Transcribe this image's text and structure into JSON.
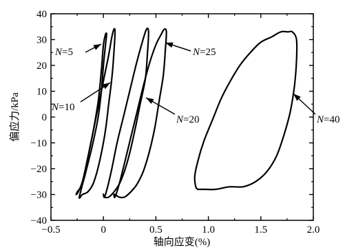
{
  "chart_data": {
    "type": "line",
    "xlabel": "轴向应变(%)",
    "ylabel": "偏应力/kPa",
    "xlim": [
      -0.5,
      2.0
    ],
    "ylim": [
      -40,
      40
    ],
    "x_ticks": [
      "−0.5",
      "0",
      "0.5",
      "1.0",
      "1.5",
      "2.0"
    ],
    "y_ticks": [
      "40",
      "30",
      "20",
      "10",
      "0",
      "−10",
      "−20",
      "−30",
      "−40"
    ],
    "grid": false,
    "series": [
      {
        "name": "N=5",
        "x": [
          -0.25,
          -0.26,
          -0.24,
          -0.2,
          -0.15,
          -0.1,
          -0.05,
          -0.02,
          0.0,
          0.02,
          0.03,
          0.02,
          0.0,
          -0.02,
          -0.05,
          -0.1,
          -0.16,
          -0.2,
          -0.23,
          -0.25
        ],
        "y": [
          -29,
          -30,
          -29,
          -25,
          -16,
          -6,
          6,
          18,
          28,
          32,
          32,
          28,
          20,
          10,
          0,
          -10,
          -20,
          -26,
          -28,
          -29
        ]
      },
      {
        "name": "N=10",
        "x": [
          -0.22,
          -0.23,
          -0.2,
          -0.15,
          -0.1,
          -0.05,
          0.0,
          0.05,
          0.08,
          0.1,
          0.11,
          0.1,
          0.08,
          0.05,
          0.02,
          -0.02,
          -0.06,
          -0.1,
          -0.15,
          -0.2,
          -0.22
        ],
        "y": [
          -31,
          -31,
          -26,
          -16,
          -6,
          4,
          14,
          24,
          31,
          34,
          33,
          25,
          15,
          5,
          -5,
          -14,
          -21,
          -26,
          -29,
          -30,
          -31
        ]
      },
      {
        "name": "N=20",
        "x": [
          0.0,
          0.01,
          0.04,
          0.08,
          0.13,
          0.19,
          0.25,
          0.31,
          0.37,
          0.41,
          0.43,
          0.42,
          0.4,
          0.35,
          0.3,
          0.25,
          0.2,
          0.15,
          0.1,
          0.05,
          0.01,
          0.0
        ],
        "y": [
          -30,
          -31,
          -27,
          -20,
          -10,
          0,
          10,
          20,
          29,
          34,
          33,
          25,
          15,
          5,
          -5,
          -14,
          -21,
          -26,
          -29,
          -31,
          -31,
          -30
        ]
      },
      {
        "name": "N=25",
        "x": [
          0.1,
          0.11,
          0.15,
          0.2,
          0.26,
          0.32,
          0.38,
          0.44,
          0.5,
          0.55,
          0.58,
          0.6,
          0.59,
          0.57,
          0.53,
          0.49,
          0.44,
          0.38,
          0.32,
          0.26,
          0.2,
          0.15,
          0.11,
          0.1
        ],
        "y": [
          -30,
          -31,
          -26,
          -18,
          -8,
          2,
          12,
          21,
          28,
          32,
          34,
          33,
          26,
          16,
          6,
          -4,
          -13,
          -21,
          -26,
          -29,
          -31,
          -31,
          -30,
          -30
        ]
      },
      {
        "name": "N=40",
        "x": [
          0.9,
          0.88,
          0.87,
          0.9,
          0.96,
          1.04,
          1.12,
          1.21,
          1.3,
          1.4,
          1.5,
          1.6,
          1.69,
          1.76,
          1.8,
          1.84,
          1.84,
          1.82,
          1.78,
          1.72,
          1.65,
          1.56,
          1.45,
          1.33,
          1.2,
          1.07,
          0.97,
          0.91,
          0.9
        ],
        "y": [
          -28,
          -27,
          -23,
          -17,
          -9,
          -1,
          7,
          14,
          20,
          25,
          29,
          31,
          33,
          33,
          33,
          30,
          22,
          12,
          2,
          -7,
          -15,
          -21,
          -25,
          -27,
          -27,
          -28,
          -28,
          -28,
          -28
        ]
      }
    ],
    "annotations": [
      {
        "prefix": "N",
        "suffix": "=5"
      },
      {
        "prefix": "N",
        "suffix": "=10"
      },
      {
        "prefix": "N",
        "suffix": "=20"
      },
      {
        "prefix": "N",
        "suffix": "=25"
      },
      {
        "prefix": "N",
        "suffix": "=40"
      }
    ]
  }
}
